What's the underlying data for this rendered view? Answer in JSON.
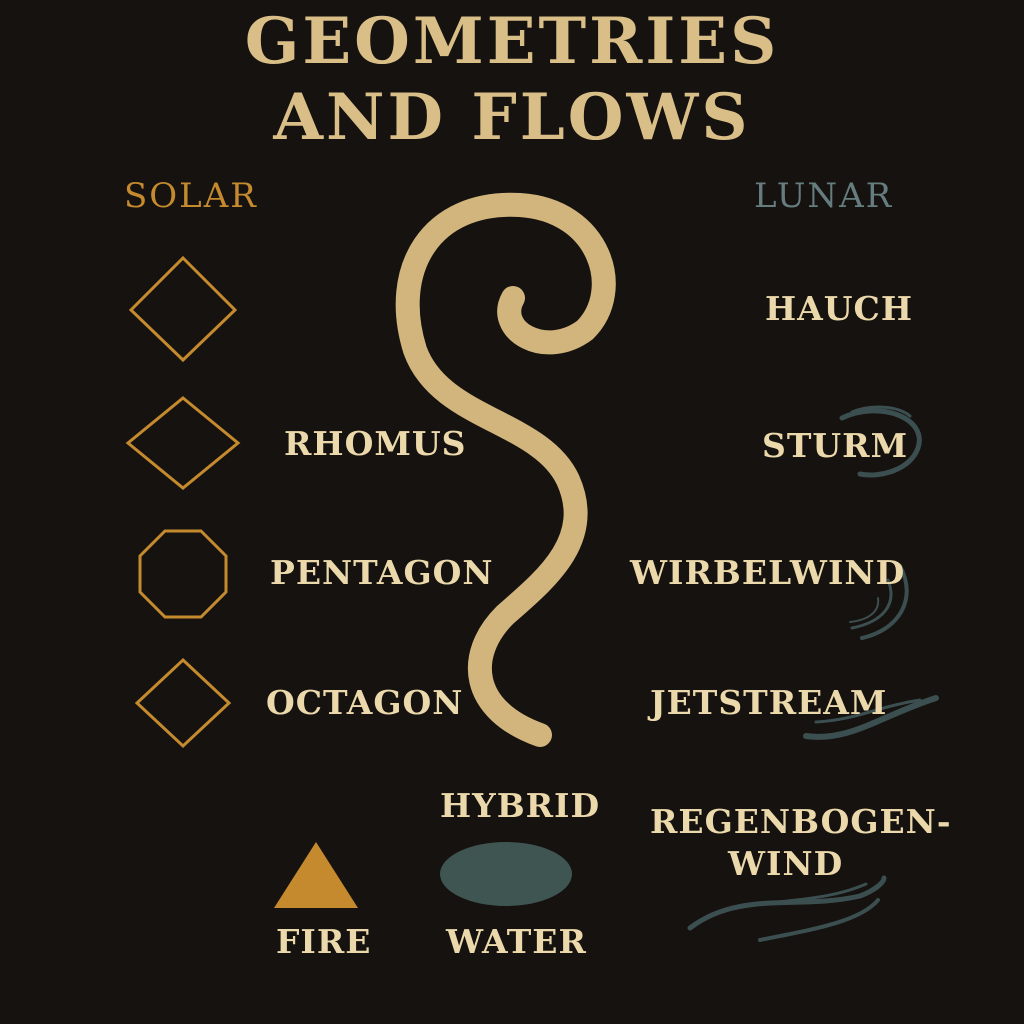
{
  "title": {
    "line1": "GEOMETRIES",
    "line2": "AND FLOWS"
  },
  "columns": {
    "solar": {
      "heading": "SOLAR",
      "color": "#c58a2e"
    },
    "lunar": {
      "heading": "LUNAR",
      "color": "#667d7f"
    }
  },
  "solar_labels": [
    "RHOMUS",
    "PENTAGON",
    "OCTAGON"
  ],
  "lunar_labels": [
    "HAUCH",
    "STURM",
    "WIRBELWIND",
    "JETSTREAM"
  ],
  "lunar_extra": {
    "line1": "REGENBOGEN-",
    "line2": "WIND"
  },
  "hybrid": {
    "heading": "HYBRID",
    "fire_label": "FIRE",
    "water_label": "WATER"
  },
  "colors": {
    "background": "#15120f",
    "gold": "#d9bf87",
    "label": "#ecd9ab",
    "solar_accent": "#c58a2e",
    "lunar_accent": "#3c4f50",
    "water": "#3f5552"
  }
}
